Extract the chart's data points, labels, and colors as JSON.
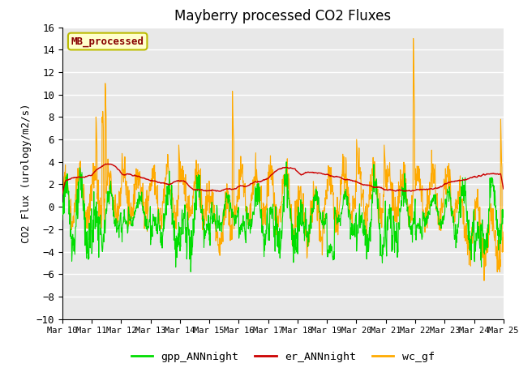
{
  "title": "Mayberry processed CO2 Fluxes",
  "ylabel": "CO2 Flux (urology/m2/s)",
  "ylim": [
    -10,
    16
  ],
  "yticks": [
    -10,
    -8,
    -6,
    -4,
    -2,
    0,
    2,
    4,
    6,
    8,
    10,
    12,
    14,
    16
  ],
  "colors": {
    "gpp": "#00dd00",
    "er": "#cc0000",
    "wc": "#ffaa00",
    "legend_box_face": "#ffffcc",
    "legend_box_edge": "#bbbb00",
    "legend_text": "#880000",
    "bg": "#e8e8e8",
    "grid": "#ffffff"
  },
  "legend_entries": [
    "gpp_ANNnight",
    "er_ANNnight",
    "wc_gf"
  ],
  "annotation_label": "MB_processed",
  "linewidths": {
    "gpp": 0.8,
    "er": 1.0,
    "wc": 0.8
  },
  "n_points": 1440,
  "days": 15
}
